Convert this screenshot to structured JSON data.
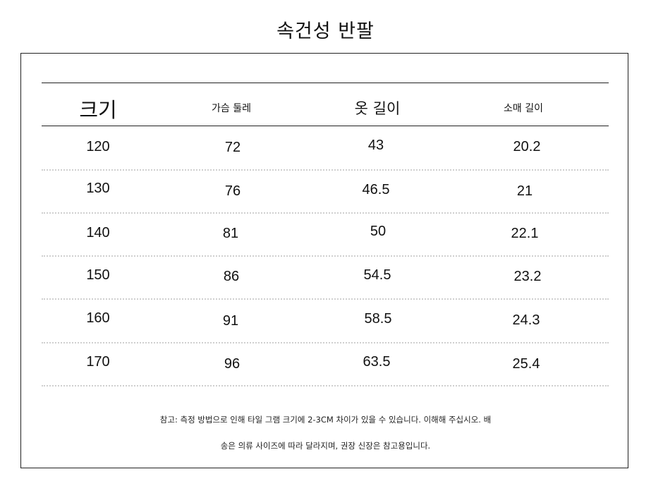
{
  "title": "속건성 반팔",
  "headers": [
    "크기",
    "가슴 둘레",
    "옷 길이",
    "소매 길이"
  ],
  "rows": [
    [
      "120",
      "72",
      "43",
      "20.2"
    ],
    [
      "130",
      "76",
      "46.5",
      "21"
    ],
    [
      "140",
      "81",
      "50",
      "22.1"
    ],
    [
      "150",
      "86",
      "54.5",
      "23.2"
    ],
    [
      "160",
      "91",
      "58.5",
      "24.3"
    ],
    [
      "170",
      "96",
      "63.5",
      "25.4"
    ]
  ],
  "notes": {
    "line1": "참고: 측정 방법으로 인해 타일 그램 크기에 2-3CM 차이가 있을 수 있습니다. 이해해 주십시오. 배",
    "line2": "송은 의류 사이즈에 따라 달라지며, 권장 신장은 참고용입니다."
  }
}
